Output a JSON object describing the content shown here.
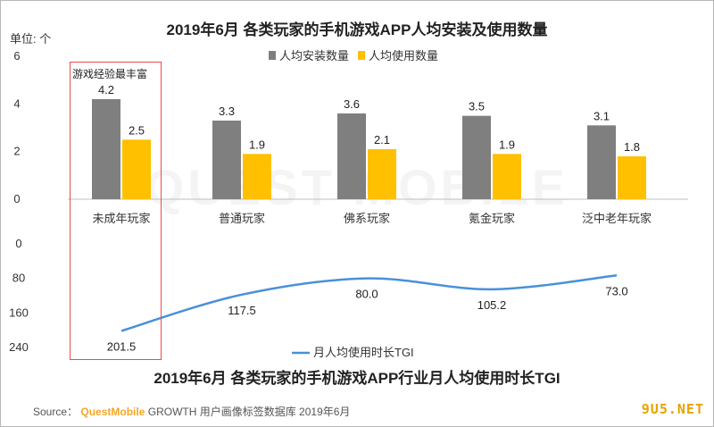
{
  "header": {
    "title": "2019年6月 各类玩家的手机游戏APP人均安装及使用数量",
    "unit_label": "单位: 个"
  },
  "highlight_label": "游戏经验最丰富",
  "footer": {
    "title": "2019年6月 各类玩家的手机游戏APP行业月人均使用时长TGI",
    "source_prefix": "Source：",
    "source_brand": "QuestMobile",
    "source_growth": "GROWTH",
    "source_rest": " 用户画像标签数据库 2019年6月",
    "watermark": "QUEST MOBILE",
    "site": "9U5.NET"
  },
  "colors": {
    "install": "#7f7f7f",
    "usage": "#ffc000",
    "tgi": "#4a90d9",
    "highlight": "#e94b4b"
  },
  "chart_data": [
    {
      "type": "bar",
      "title": "2019年6月 各类玩家的手机游戏APP人均安装及使用数量",
      "ylabel": "单位: 个",
      "ylim": [
        0,
        6
      ],
      "yticks": [
        0,
        2,
        4,
        6
      ],
      "categories": [
        "未成年玩家",
        "普通玩家",
        "佛系玩家",
        "氪金玩家",
        "泛中老年玩家"
      ],
      "series": [
        {
          "name": "人均安装数量",
          "values": [
            4.2,
            3.3,
            3.6,
            3.5,
            3.1
          ]
        },
        {
          "name": "人均使用数量",
          "values": [
            2.5,
            1.9,
            2.1,
            1.9,
            1.8
          ]
        }
      ],
      "legend": "top-right"
    },
    {
      "type": "line",
      "title": "2019年6月 各类玩家的手机游戏APP行业月人均使用时长TGI",
      "ylim": [
        0,
        240
      ],
      "yticks": [
        0,
        80,
        160,
        240
      ],
      "inverted_y": true,
      "categories": [
        "未成年玩家",
        "普通玩家",
        "佛系玩家",
        "氪金玩家",
        "泛中老年玩家"
      ],
      "series": [
        {
          "name": "月人均使用时长TGI",
          "values": [
            201.5,
            117.5,
            80.0,
            105.2,
            73.0
          ]
        }
      ],
      "legend": "bottom-center"
    }
  ]
}
